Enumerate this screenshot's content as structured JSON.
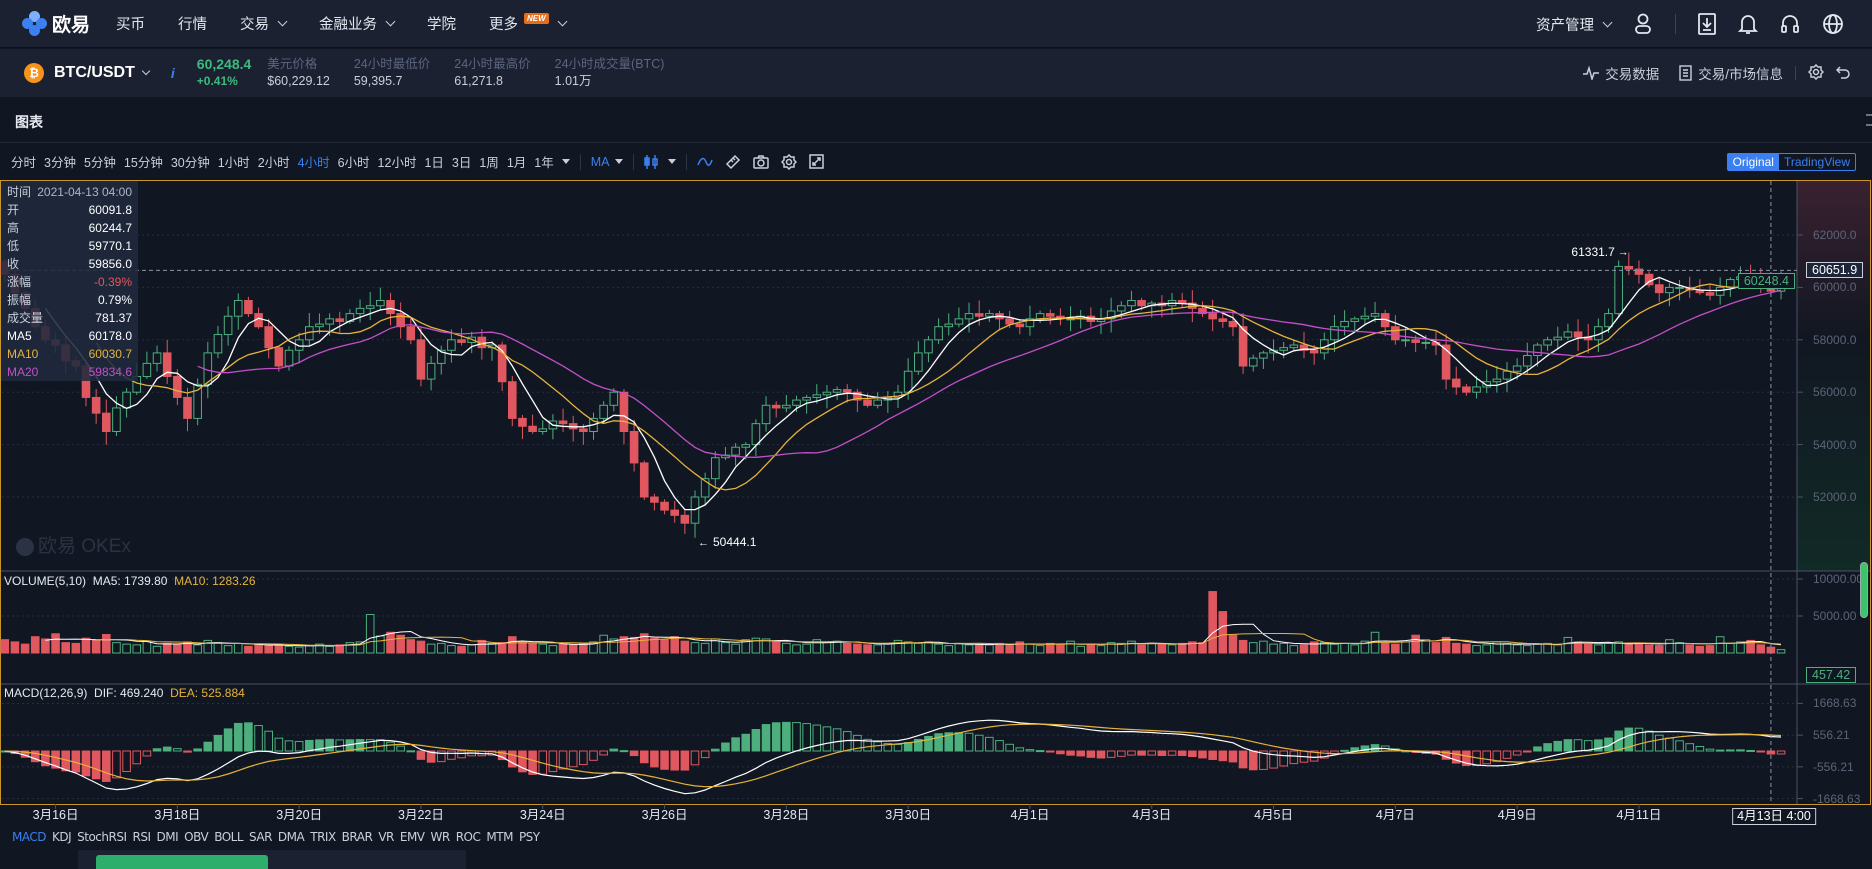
{
  "nav": {
    "logo_text": "欧易",
    "items": [
      {
        "label": "买币",
        "dropdown": false
      },
      {
        "label": "行情",
        "dropdown": false
      },
      {
        "label": "交易",
        "dropdown": true
      },
      {
        "label": "金融业务",
        "dropdown": true
      },
      {
        "label": "学院",
        "dropdown": false
      },
      {
        "label": "更多",
        "dropdown": true,
        "badge": "NEW"
      }
    ],
    "asset_mgmt": "资产管理",
    "icons": [
      "user-icon",
      "download-icon",
      "bell-icon",
      "headset-icon",
      "globe-icon"
    ]
  },
  "ticker": {
    "coin_symbol": "₿",
    "pair": "BTC/USDT",
    "info": "i",
    "last_price": "60,248.4",
    "change": "+0.41%",
    "stats": [
      {
        "label": "美元价格",
        "value": "$60,229.12"
      },
      {
        "label": "24小时最低价",
        "value": "59,395.7"
      },
      {
        "label": "24小时最高价",
        "value": "61,271.8"
      },
      {
        "label": "24小时成交量(BTC)",
        "value": "1.01万"
      }
    ],
    "trade_data": "交易数据",
    "market_info": "交易/市场信息"
  },
  "chart_panel": {
    "title": "图表",
    "intervals": [
      "分时",
      "3分钟",
      "5分钟",
      "15分钟",
      "30分钟",
      "1小时",
      "2小时",
      "4小时",
      "6小时",
      "12小时",
      "1日",
      "3日",
      "1周",
      "1月",
      "1年"
    ],
    "active_interval": "4小时",
    "indicator_select": "MA",
    "view_modes": [
      "Original",
      "TradingView"
    ],
    "active_view": "Original",
    "watermark": "欧易 OKEx",
    "indicator_tabs": [
      "MACD",
      "KDJ",
      "StochRSI",
      "RSI",
      "DMI",
      "OBV",
      "BOLL",
      "SAR",
      "DMA",
      "TRIX",
      "BRAR",
      "VR",
      "EMV",
      "WR",
      "ROC",
      "MTM",
      "PSY"
    ],
    "active_indicator": "MACD"
  },
  "tooltip": {
    "time_label": "时间",
    "time": "2021-04-13 04:00",
    "open_label": "开",
    "open": "60091.8",
    "high_label": "高",
    "high": "60244.7",
    "low_label": "低",
    "low": "59770.1",
    "close_label": "收",
    "close": "59856.0",
    "change_label": "涨幅",
    "change": "-0.39%",
    "amplitude_label": "振幅",
    "amplitude": "0.79%",
    "volume_label": "成交量",
    "volume": "781.37",
    "ma5_label": "MA5",
    "ma5": "60178.0",
    "ma10_label": "MA10",
    "ma10": "60030.7",
    "ma20_label": "MA20",
    "ma20": "59834.6"
  },
  "volume_legend": {
    "title": "VOLUME(5,10)",
    "ma5": "MA5: 1739.80",
    "ma10": "MA10: 1283.26"
  },
  "macd_legend": {
    "title": "MACD(12,26,9)",
    "dif": "DIF: 469.240",
    "dea": "DEA: 525.884"
  },
  "crosshair": {
    "price": "60651.9",
    "time": "4月13日 4:00",
    "volume": "457.42"
  },
  "colors": {
    "up": "#4caf7d",
    "down": "#e0575f",
    "ma5": "#ffffff",
    "ma10": "#e6b33a",
    "ma20": "#c34fc9",
    "accent": "#3b7ff0",
    "frame": "#c9962c"
  },
  "chart_data": [
    {
      "type": "candlestick",
      "interval": "4小时",
      "start": "2021-03-15 04:00",
      "y_ticks": [
        "62000.0",
        "60000.0",
        "58000.0",
        "56000.0",
        "54000.0",
        "52000.0"
      ],
      "ylim": [
        50000,
        63500
      ],
      "x_ticks": [
        "3月16日",
        "3月18日",
        "3月20日",
        "3月22日",
        "3月24日",
        "3月26日",
        "3月28日",
        "3月30日",
        "4月1日",
        "4月3日",
        "4月5日",
        "4月7日",
        "4月9日",
        "4月11日"
      ],
      "last_price": "60248.4",
      "annotations": {
        "high": "61331.7",
        "low": "50444.1"
      },
      "series": [
        {
          "name": "MA5"
        },
        {
          "name": "MA10"
        },
        {
          "name": "MA20"
        }
      ],
      "closes": [
        60500,
        59800,
        59200,
        58500,
        58000,
        57800,
        57200,
        57000,
        55800,
        55200,
        54500,
        55400,
        56000,
        56600,
        57100,
        57500,
        56600,
        55800,
        55000,
        56300,
        57500,
        58200,
        58900,
        59500,
        59000,
        58500,
        57700,
        57000,
        57600,
        58000,
        58500,
        58600,
        58800,
        58700,
        59000,
        59200,
        59300,
        59500,
        59000,
        58500,
        58000,
        56500,
        57100,
        57600,
        58000,
        57900,
        58100,
        57700,
        57800,
        56400,
        55000,
        54700,
        54500,
        54600,
        54900,
        54800,
        54600,
        54500,
        55000,
        55500,
        56000,
        54500,
        53300,
        52000,
        51800,
        51500,
        51300,
        51000,
        52000,
        52700,
        53500,
        53600,
        53900,
        54000,
        54800,
        55500,
        55400,
        55500,
        55700,
        55800,
        55900,
        56000,
        56100,
        56000,
        55700,
        55500,
        55700,
        55800,
        56000,
        56800,
        57500,
        58000,
        58500,
        58600,
        58800,
        59000,
        58900,
        59000,
        58800,
        58600,
        58500,
        58800,
        59000,
        58900,
        58800,
        58800,
        58900,
        58700,
        58800,
        59100,
        59300,
        59500,
        59300,
        59400,
        59300,
        59500,
        59400,
        59200,
        59000,
        58800,
        58700,
        58500,
        57000,
        57300,
        57500,
        57600,
        57700,
        57800,
        57600,
        57500,
        58000,
        58500,
        58700,
        58800,
        58900,
        59000,
        58500,
        58000,
        58000,
        57900,
        57900,
        57800,
        56500,
        56200,
        56000,
        56200,
        56400,
        56500,
        56800,
        57000,
        57400,
        57800,
        58000,
        58100,
        58300,
        58100,
        58000,
        58500,
        59000,
        60800,
        60700,
        60500,
        60100,
        59800,
        60000,
        60000,
        59900,
        59800,
        59700,
        60000,
        60300,
        60400,
        60300,
        60100,
        59856,
        60248.4
      ]
    },
    {
      "type": "bar",
      "title": "VOLUME(5,10)",
      "y_ticks": [
        "10000.00",
        "5000.00"
      ],
      "values": [
        1800,
        1500,
        1200,
        2200,
        1900,
        2600,
        1400,
        1300,
        2000,
        1700,
        2500,
        1400,
        1200,
        1100,
        1600,
        900,
        1300,
        1200,
        1500,
        1100,
        1700,
        1400,
        1000,
        1300,
        900,
        1200,
        1000,
        1100,
        900,
        800,
        1000,
        1200,
        900,
        1100,
        1400,
        1500,
        5200,
        2300,
        2800,
        2400,
        1800,
        1600,
        1200,
        1300,
        1000,
        900,
        1100,
        1700,
        1300,
        1400,
        2200,
        1500,
        1300,
        1200,
        1000,
        1200,
        1100,
        1300,
        1500,
        2400,
        1900,
        2200,
        2100,
        2600,
        2000,
        1800,
        2200,
        1600,
        1400,
        1300,
        1900,
        1400,
        1200,
        1800,
        2000,
        1900,
        1500,
        1300,
        1100,
        1200,
        1800,
        1500,
        1600,
        1300,
        1200,
        1100,
        1100,
        1300,
        1700,
        1500,
        1300,
        1500,
        1200,
        1000,
        1300,
        1100,
        1200,
        1100,
        1300,
        1000,
        1500,
        1200,
        1000,
        1300,
        1100,
        1600,
        900,
        1200,
        1000,
        1400,
        1300,
        1600,
        1100,
        1300,
        1200,
        1100,
        1300,
        1500,
        1400,
        8300,
        5600,
        2400,
        1700,
        1400,
        1600,
        1200,
        1300,
        1000,
        1100,
        1500,
        1400,
        1200,
        1300,
        1100,
        1600,
        2800,
        1300,
        1200,
        1500,
        2400,
        1800,
        1400,
        2100,
        1300,
        1200,
        1000,
        1100,
        1500,
        1300,
        1100,
        1000,
        1200,
        1300,
        1100,
        2100,
        1500,
        1200,
        1100,
        1300,
        1500,
        1200,
        1300,
        1100,
        1000,
        1800,
        1400,
        1100,
        900,
        1000,
        2200,
        1300,
        1500,
        1700,
        1100,
        781.37,
        457.42
      ]
    },
    {
      "type": "macd",
      "title": "MACD(12,26,9)",
      "y_ticks": [
        "1668.63",
        "556.21",
        "-556.21",
        "-1668.63"
      ]
    }
  ]
}
